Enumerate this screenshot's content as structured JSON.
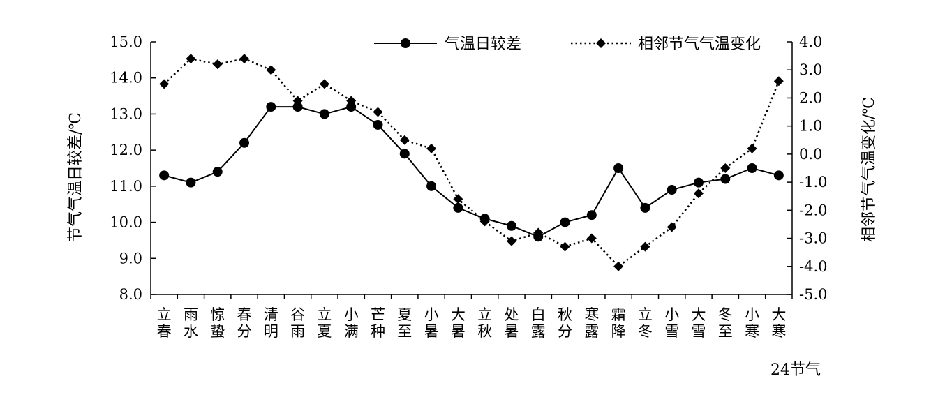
{
  "chart_data": {
    "type": "line",
    "xlabel": "24节气",
    "ylabel_left": "节气气温日较差/℃",
    "ylabel_right": "相邻节气气温变化/℃",
    "ylim_left": [
      8.0,
      15.0
    ],
    "ylim_right": [
      -5.0,
      4.0
    ],
    "yticks_left": [
      "8.0",
      "9.0",
      "10.0",
      "11.0",
      "12.0",
      "13.0",
      "14.0",
      "15.0"
    ],
    "yticks_right": [
      "-5.0",
      "-4.0",
      "-3.0",
      "-2.0",
      "-1.0",
      "0.0",
      "1.0",
      "2.0",
      "3.0",
      "4.0"
    ],
    "grid": false,
    "legend_position": "top-right",
    "categories": [
      "立春",
      "雨水",
      "惊蛰",
      "春分",
      "清明",
      "谷雨",
      "立夏",
      "小满",
      "芒种",
      "夏至",
      "小暑",
      "大暑",
      "立秋",
      "处暑",
      "白露",
      "秋分",
      "寒露",
      "霜降",
      "立冬",
      "小雪",
      "大雪",
      "冬至",
      "小寒",
      "大寒"
    ],
    "series": [
      {
        "name": "气温日较差",
        "axis": "left",
        "style": "solid",
        "marker": "circle",
        "values": [
          11.3,
          11.1,
          11.4,
          12.2,
          13.2,
          13.2,
          13.0,
          13.2,
          12.7,
          11.9,
          11.0,
          10.4,
          10.1,
          9.9,
          9.6,
          10.0,
          10.2,
          11.5,
          10.4,
          10.9,
          11.1,
          11.2,
          11.5,
          11.3
        ]
      },
      {
        "name": "相邻节气气温变化",
        "axis": "right",
        "style": "dotted",
        "marker": "diamond",
        "values": [
          2.5,
          3.4,
          3.2,
          3.4,
          3.0,
          1.9,
          2.5,
          1.9,
          1.5,
          0.5,
          0.2,
          -1.6,
          -2.4,
          -3.1,
          -2.8,
          -3.3,
          -3.0,
          -4.0,
          -3.3,
          -2.6,
          -1.4,
          -0.5,
          0.2,
          2.6
        ]
      }
    ]
  }
}
